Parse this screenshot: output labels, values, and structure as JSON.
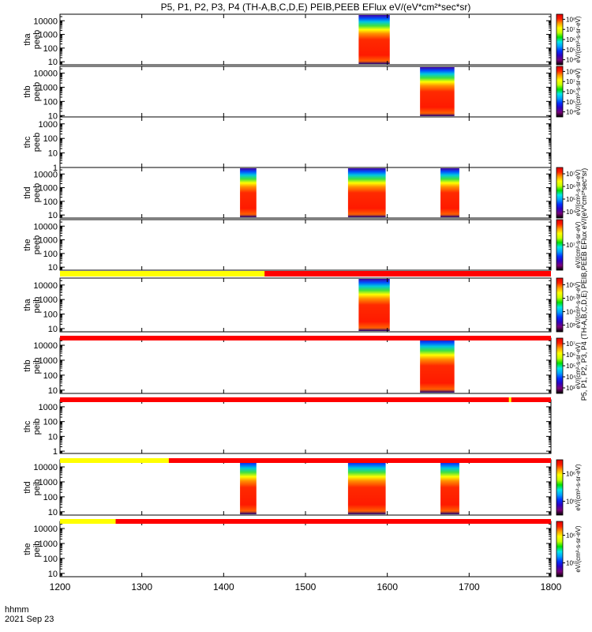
{
  "title": "P5, P1, P2, P3, P4 (TH-A,B,C,D,E) PEIB,PEEB EFlux eV/(eV*cm²*sec*sr)",
  "time_axis": {
    "label_top": "hhmm",
    "label_bottom": "2021 Sep 23",
    "ticks": [
      "1200",
      "1300",
      "1400",
      "1500",
      "1600",
      "1700",
      "1800"
    ],
    "range": [
      1200,
      1800
    ]
  },
  "colorbar_gradient": [
    "#000000",
    "#7a0078",
    "#3000c0",
    "#0030ff",
    "#00a0ff",
    "#00e8e8",
    "#00e000",
    "#c8ff00",
    "#ffff00",
    "#ffa000",
    "#ff2000",
    "#e00000"
  ],
  "flag_colors": {
    "yellow": "#ffff00",
    "red": "#ff0000"
  },
  "chart_data": [
    {
      "type": "heatmap",
      "panel": "tha-peeb",
      "ylabel_lines": [
        "tha",
        "peeb"
      ],
      "yscale": "log",
      "yticks": [
        "10",
        "100",
        "1000",
        "10000"
      ],
      "ylim": [
        6,
        30000
      ],
      "colorbar_ticks": [
        "10⁴",
        "10⁵",
        "10⁶",
        "10⁷",
        "10⁸"
      ],
      "colorbar_label": "eV/(cm²-s-sr-eV)",
      "data_intervals": [
        [
          1565,
          1603
        ]
      ]
    },
    {
      "type": "heatmap",
      "panel": "thb-peeb",
      "ylabel_lines": [
        "thb",
        "peeb"
      ],
      "yscale": "log",
      "yticks": [
        "10",
        "100",
        "1000",
        "10000"
      ],
      "ylim": [
        8,
        30000
      ],
      "colorbar_ticks": [
        "10⁴",
        "10⁵",
        "10⁶",
        "10⁷",
        "10⁸"
      ],
      "colorbar_label": "eV/(cm²-s-sr-eV)",
      "data_intervals": [
        [
          1640,
          1682
        ]
      ]
    },
    {
      "type": "heatmap",
      "panel": "thc-peeb",
      "ylabel_lines": [
        "thc",
        "peeb"
      ],
      "yscale": "log",
      "yticks": [
        "1",
        "10",
        "100",
        "1000"
      ],
      "ylim": [
        1,
        3000
      ],
      "data_intervals": []
    },
    {
      "type": "heatmap",
      "panel": "thd-peeb",
      "ylabel_lines": [
        "thd",
        "peeb"
      ],
      "yscale": "log",
      "yticks": [
        "10",
        "100",
        "1000",
        "10000"
      ],
      "ylim": [
        6,
        30000
      ],
      "colorbar_ticks": [
        "10⁴",
        "10⁵",
        "10⁶",
        "10⁷"
      ],
      "colorbar_label": "eV/(cm²-s-sr-eV)",
      "data_intervals": [
        [
          1420,
          1440
        ],
        [
          1552,
          1598
        ],
        [
          1665,
          1688
        ]
      ]
    },
    {
      "type": "heatmap",
      "panel": "the-peeb",
      "ylabel_lines": [
        "the",
        "peeb"
      ],
      "yscale": "log",
      "yticks": [
        "10",
        "100",
        "1000",
        "10000"
      ],
      "ylim": [
        6,
        30000
      ],
      "colorbar_ticks": [
        "10⁷"
      ],
      "colorbar_label": "eV/(cm²-s-sr-eV)",
      "data_intervals": []
    },
    {
      "type": "heatmap",
      "panel": "tha-peib",
      "ylabel_lines": [
        "tha",
        "peib"
      ],
      "yscale": "log",
      "yticks": [
        "10",
        "100",
        "1000",
        "10000"
      ],
      "ylim": [
        6,
        30000
      ],
      "colorbar_ticks": [
        "10³",
        "10⁴",
        "10⁵",
        "10⁶"
      ],
      "colorbar_label": "eV/(cm²-s-sr-eV)",
      "flag_bar": {
        "yellow_until": 1450
      },
      "data_intervals": [
        [
          1565,
          1603
        ]
      ]
    },
    {
      "type": "heatmap",
      "panel": "thb-peib",
      "ylabel_lines": [
        "thb",
        "peib"
      ],
      "yscale": "log",
      "yticks": [
        "10",
        "100",
        "1000",
        "10000"
      ],
      "ylim": [
        6,
        30000
      ],
      "colorbar_ticks": [
        "10³",
        "10⁴",
        "10⁵",
        "10⁶",
        "10⁷"
      ],
      "colorbar_label": "eV/(cm²-s-sr-eV)",
      "flag_bar": {
        "yellow_until": 1200
      },
      "data_intervals": [
        [
          1640,
          1682
        ]
      ]
    },
    {
      "type": "heatmap",
      "panel": "thc-peib",
      "ylabel_lines": [
        "thc",
        "peib"
      ],
      "yscale": "log",
      "yticks": [
        "1",
        "10",
        "100",
        "1000"
      ],
      "ylim": [
        0.7,
        3000
      ],
      "flag_bar": {
        "yellow_until": 1200,
        "yellow_spot": 1750
      },
      "data_intervals": []
    },
    {
      "type": "heatmap",
      "panel": "thd-peib",
      "ylabel_lines": [
        "thd",
        "peib"
      ],
      "yscale": "log",
      "yticks": [
        "10",
        "100",
        "1000",
        "10000"
      ],
      "ylim": [
        6,
        30000
      ],
      "colorbar_ticks": [
        "10⁵",
        "10⁶"
      ],
      "colorbar_label": "eV/(cm²-s-sr-eV)",
      "flag_bar": {
        "yellow_until": 1333
      },
      "data_intervals": [
        [
          1420,
          1440
        ],
        [
          1552,
          1598
        ],
        [
          1665,
          1688
        ]
      ]
    },
    {
      "type": "heatmap",
      "panel": "the-peib",
      "ylabel_lines": [
        "the",
        "peib"
      ],
      "yscale": "log",
      "yticks": [
        "10",
        "100",
        "1000",
        "10000"
      ],
      "ylim": [
        6,
        30000
      ],
      "colorbar_ticks": [
        "10⁵",
        "10⁶"
      ],
      "colorbar_label": "eV/(cm²-s-sr-eV)",
      "flag_bar": {
        "yellow_until": 1268
      },
      "data_intervals": []
    }
  ]
}
